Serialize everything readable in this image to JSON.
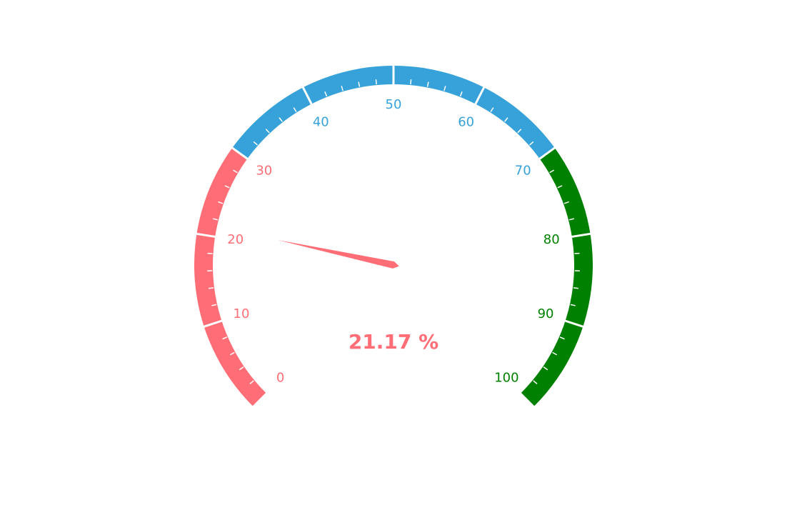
{
  "chart_data": {
    "type": "gauge",
    "value": 21.17,
    "value_text": "21.17 %",
    "min": 0,
    "max": 100,
    "split_number": 10,
    "ticks_per_split": 5,
    "bands": [
      {
        "from": 0,
        "to": 30,
        "color": "#ff6e76"
      },
      {
        "from": 30,
        "to": 70,
        "color": "#37a2da"
      },
      {
        "from": 70,
        "to": 100,
        "color": "#008000"
      }
    ],
    "tick_labels": [
      "0",
      "10",
      "20",
      "30",
      "40",
      "50",
      "60",
      "70",
      "80",
      "90",
      "100"
    ],
    "pointer_color": "#ff6e76",
    "value_color": "#ff6e76"
  }
}
